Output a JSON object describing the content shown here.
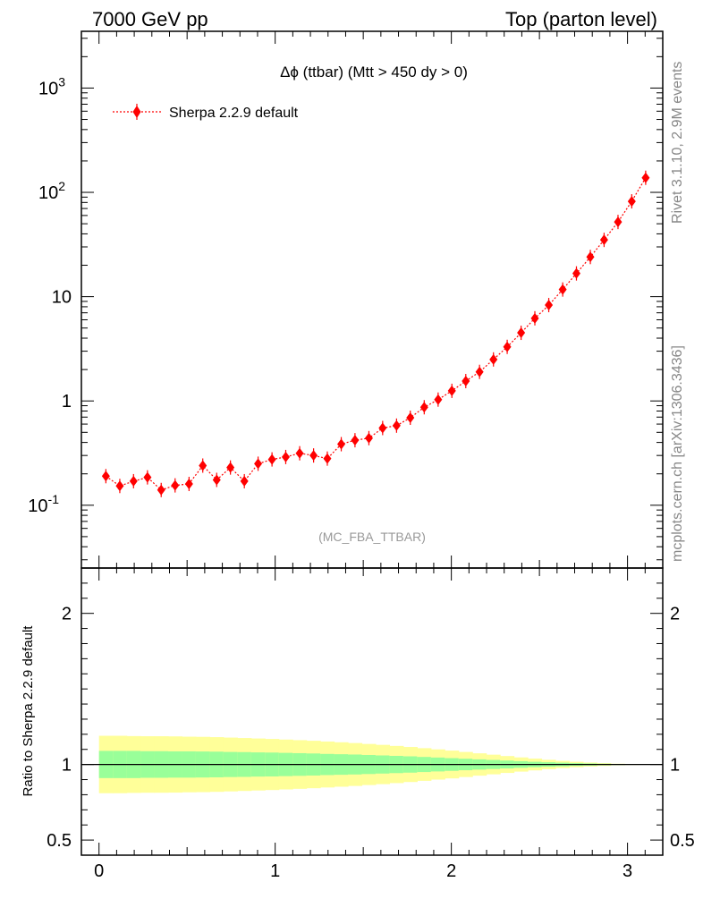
{
  "header": {
    "left": "7000 GeV pp",
    "right": "Top (parton level)"
  },
  "side_labels": {
    "rivet": "Rivet 3.1.10,  2.9M events",
    "mcplots": "mcplots.cern.ch [arXiv:1306.3436]"
  },
  "watermark": "(MC_FBA_TTBAR)",
  "colors": {
    "series": "#ff0000",
    "band_inner": "#99ff99",
    "band_outer": "#ffff99"
  },
  "chart_data": [
    {
      "type": "scatter",
      "title": "Δϕ (ttbar) (Mtt > 450 dy > 0)",
      "yscale": "log",
      "xlim": [
        -0.1,
        3.2
      ],
      "ylim": [
        0.025,
        3500
      ],
      "ytick_labels": [
        "10^-1",
        "1",
        "10",
        "10^2",
        "10^3"
      ],
      "legend": {
        "position": "top-left",
        "entries": [
          "Sherpa 2.2.9 default"
        ]
      },
      "series": [
        {
          "name": "Sherpa 2.2.9 default",
          "x": [
            0.039,
            0.118,
            0.196,
            0.275,
            0.353,
            0.432,
            0.511,
            0.589,
            0.668,
            0.746,
            0.825,
            0.903,
            0.982,
            1.06,
            1.139,
            1.218,
            1.296,
            1.375,
            1.453,
            1.532,
            1.61,
            1.689,
            1.767,
            1.846,
            1.925,
            2.003,
            2.082,
            2.16,
            2.239,
            2.317,
            2.396,
            2.474,
            2.553,
            2.632,
            2.71,
            2.789,
            2.867,
            2.946,
            3.024,
            3.103
          ],
          "y": [
            0.19,
            0.153,
            0.17,
            0.185,
            0.14,
            0.155,
            0.16,
            0.24,
            0.175,
            0.23,
            0.17,
            0.25,
            0.275,
            0.29,
            0.315,
            0.3,
            0.28,
            0.385,
            0.42,
            0.44,
            0.55,
            0.58,
            0.69,
            0.87,
            1.03,
            1.25,
            1.55,
            1.9,
            2.5,
            3.3,
            4.5,
            6.2,
            8.3,
            11.7,
            16.7,
            24,
            35,
            52,
            82,
            138
          ]
        }
      ]
    },
    {
      "type": "area",
      "ylabel": "Ratio to Sherpa 2.2.9 default",
      "xlim": [
        -0.1,
        3.2
      ],
      "ylim": [
        0.4,
        2.3
      ],
      "x_ticks": [
        0,
        1,
        2,
        3
      ],
      "y_ticks": [
        0.5,
        1,
        2
      ],
      "reference_line": 1,
      "x_edges": [
        0,
        0.0785,
        0.157,
        0.2355,
        0.314,
        0.3925,
        0.471,
        0.5495,
        0.628,
        0.7065,
        0.785,
        0.8635,
        0.942,
        1.0205,
        1.099,
        1.1775,
        1.256,
        1.3345,
        1.413,
        1.4915,
        1.57,
        1.6485,
        1.727,
        1.8055,
        1.884,
        1.9625,
        2.041,
        2.1195,
        2.198,
        2.2765,
        2.355,
        2.4335,
        2.512,
        2.5905,
        2.669,
        2.7475,
        2.826,
        2.9045,
        2.983,
        3.0615,
        3.14
      ],
      "band_inner": [
        0.09,
        0.09,
        0.09,
        0.088,
        0.088,
        0.087,
        0.087,
        0.086,
        0.085,
        0.083,
        0.082,
        0.08,
        0.079,
        0.077,
        0.075,
        0.073,
        0.07,
        0.068,
        0.066,
        0.063,
        0.06,
        0.057,
        0.054,
        0.05,
        0.046,
        0.042,
        0.038,
        0.034,
        0.03,
        0.026,
        0.022,
        0.018,
        0.015,
        0.012,
        0.009,
        0.007,
        0.005,
        0.003,
        0.002,
        0.001
      ],
      "band_outer": [
        0.19,
        0.19,
        0.188,
        0.187,
        0.187,
        0.186,
        0.184,
        0.183,
        0.181,
        0.178,
        0.175,
        0.172,
        0.169,
        0.165,
        0.161,
        0.157,
        0.152,
        0.147,
        0.142,
        0.136,
        0.13,
        0.123,
        0.116,
        0.108,
        0.1,
        0.092,
        0.083,
        0.074,
        0.065,
        0.056,
        0.047,
        0.039,
        0.031,
        0.024,
        0.018,
        0.013,
        0.009,
        0.005,
        0.003,
        0.001
      ]
    }
  ]
}
